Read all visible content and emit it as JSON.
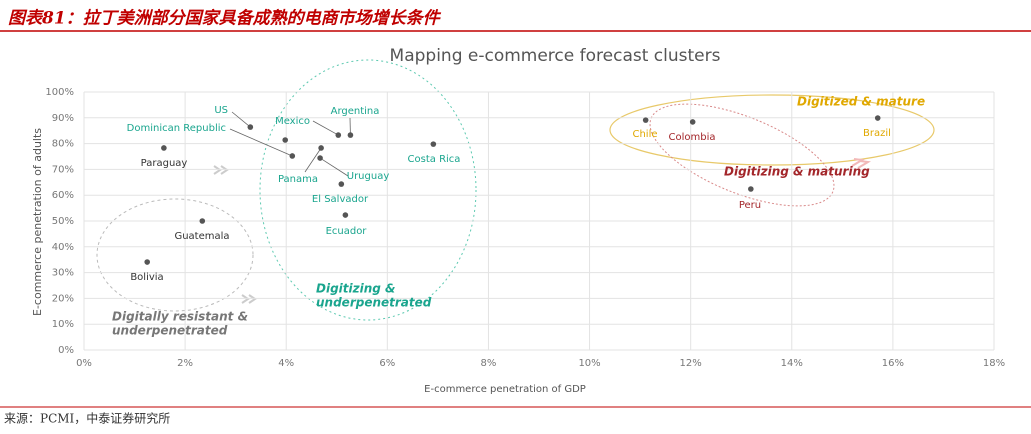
{
  "header": {
    "title": "图表81：拉丁美洲部分国家具备成熟的电商市场增长条件"
  },
  "footer": {
    "source": "来源：PCMI，中泰证券研究所"
  },
  "chart_data": {
    "type": "scatter",
    "title": "Mapping e-commerce forecast clusters",
    "xlabel": "E-commerce penetration of GDP",
    "ylabel": "E-commerce penetration of adults",
    "labels": [
      "US",
      "Dominican Republic",
      "Mexico",
      "Argentina",
      null,
      "Panama",
      "Uruguay",
      "El Salvador",
      "Ecuador",
      "Costa Rica",
      "Paraguay",
      "Guatemala",
      "Bolivia",
      "Chile",
      "Colombia",
      "Brazil",
      "Peru"
    ],
    "x": [
      3.29,
      4.12,
      5.03,
      5.27,
      3.98,
      4.69,
      4.67,
      5.09,
      5.17,
      6.91,
      1.58,
      2.34,
      1.25,
      11.11,
      12.04,
      15.7,
      13.19
    ],
    "y": [
      86.4,
      75.2,
      83.3,
      83.3,
      81.4,
      78.3,
      74.4,
      64.3,
      52.3,
      79.8,
      78.3,
      50.0,
      34.1,
      89.1,
      88.4,
      89.9,
      62.4
    ],
    "label_colors": [
      "#1aa58e",
      "#1aa58e",
      "#1aa58e",
      "#1aa58e",
      "#1aa58e",
      "#1aa58e",
      "#1aa58e",
      "#1aa58e",
      "#1aa58e",
      "#1aa58e",
      "#333333",
      "#333333",
      "#333333",
      "#e0a800",
      "#a3262a",
      "#e0a800",
      "#a3262a"
    ],
    "point_color": "#555555",
    "xlim": [
      0,
      18
    ],
    "ylim": [
      0,
      100
    ],
    "grid": true,
    "xticks": [
      {
        "value": 0,
        "label": "0%"
      },
      {
        "value": 2,
        "label": "2%"
      },
      {
        "value": 4,
        "label": "4%"
      },
      {
        "value": 6,
        "label": "6%"
      },
      {
        "value": 8,
        "label": "8%"
      },
      {
        "value": 10,
        "label": "10%"
      },
      {
        "value": 12,
        "label": "12%"
      },
      {
        "value": 14,
        "label": "14%"
      },
      {
        "value": 16,
        "label": "16%"
      },
      {
        "value": 18,
        "label": "18%"
      }
    ],
    "yticks": [
      {
        "value": 0,
        "label": "0%"
      },
      {
        "value": 10,
        "label": "10%"
      },
      {
        "value": 20,
        "label": "20%"
      },
      {
        "value": 30,
        "label": "30%"
      },
      {
        "value": 40,
        "label": "40%"
      },
      {
        "value": 50,
        "label": "50%"
      },
      {
        "value": 60,
        "label": "60%"
      },
      {
        "value": 70,
        "label": "70%"
      },
      {
        "value": 80,
        "label": "80%"
      },
      {
        "value": 90,
        "label": "90%"
      },
      {
        "value": 100,
        "label": "100%"
      }
    ],
    "annotations": [
      {
        "lines": [
          "Digitized & mature"
        ],
        "color": "#e0a800"
      },
      {
        "lines": [
          "Digitizing & maturing"
        ],
        "color": "#a3262a"
      },
      {
        "lines": [
          "Digitizing &",
          "underpenetrated"
        ],
        "color": "#1aa58e"
      },
      {
        "lines": [
          "Digitally resistant &",
          "underpenetrated"
        ],
        "color": "#777777"
      }
    ]
  }
}
